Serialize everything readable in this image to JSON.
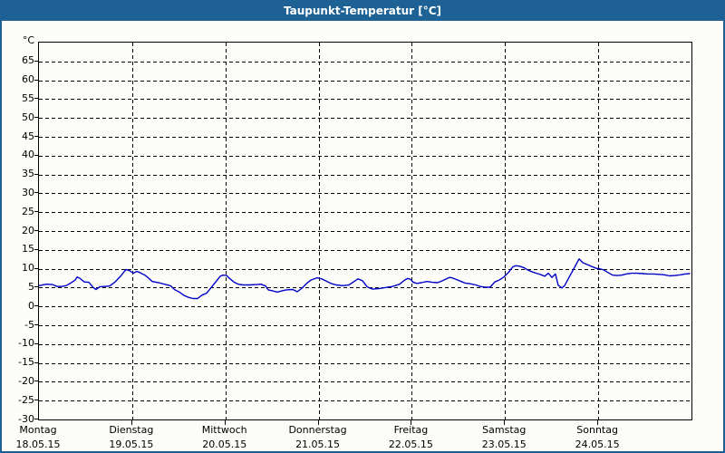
{
  "window": {
    "title": "Taupunkt-Temperatur [°C]"
  },
  "colors": {
    "titlebar_background": "#1e6295",
    "titlebar_text": "#ffffff",
    "window_border": "#1e6295",
    "background": "#fcfdf8",
    "grid": "#000000",
    "axis_frame": "#000000",
    "line": "#0000c8",
    "label_text": "#000000"
  },
  "chart_data": {
    "type": "line",
    "title": "Taupunkt-Temperatur [°C]",
    "unit_label": "°C",
    "grid": "dashed",
    "legend": "none",
    "y_axis": {
      "min": -30,
      "max": 70,
      "tick_step": 5,
      "labeled_tick_min": -30,
      "labeled_tick_max": 65
    },
    "x_axis": {
      "span_days": 7,
      "days": [
        {
          "name": "Montag",
          "date": "18.05.15"
        },
        {
          "name": "Dienstag",
          "date": "19.05.15"
        },
        {
          "name": "Mittwoch",
          "date": "20.05.15"
        },
        {
          "name": "Donnerstag",
          "date": "21.05.15"
        },
        {
          "name": "Freitag",
          "date": "22.05.15"
        },
        {
          "name": "Samstag",
          "date": "23.05.15"
        },
        {
          "name": "Sonntag",
          "date": "24.05.15"
        }
      ]
    },
    "series": [
      {
        "name": "Taupunkt",
        "color": "#0000c8",
        "points": [
          [
            0.0,
            5.5
          ],
          [
            0.078,
            5.9
          ],
          [
            0.146,
            5.8
          ],
          [
            0.194,
            5.3
          ],
          [
            0.243,
            5.3
          ],
          [
            0.292,
            5.5
          ],
          [
            0.34,
            6.2
          ],
          [
            0.389,
            7.0
          ],
          [
            0.408,
            7.8
          ],
          [
            0.437,
            7.5
          ],
          [
            0.486,
            6.5
          ],
          [
            0.535,
            6.4
          ],
          [
            0.583,
            5.0
          ],
          [
            0.612,
            4.5
          ],
          [
            0.651,
            5.2
          ],
          [
            0.7,
            5.3
          ],
          [
            0.758,
            5.4
          ],
          [
            0.817,
            6.5
          ],
          [
            0.875,
            8.0
          ],
          [
            0.933,
            9.8
          ],
          [
            0.972,
            9.5
          ],
          [
            1.011,
            8.8
          ],
          [
            1.05,
            9.3
          ],
          [
            1.089,
            8.9
          ],
          [
            1.137,
            8.3
          ],
          [
            1.176,
            7.5
          ],
          [
            1.215,
            6.6
          ],
          [
            1.283,
            6.3
          ],
          [
            1.361,
            5.8
          ],
          [
            1.41,
            5.5
          ],
          [
            1.458,
            4.4
          ],
          [
            1.507,
            3.8
          ],
          [
            1.556,
            2.9
          ],
          [
            1.604,
            2.4
          ],
          [
            1.653,
            2.1
          ],
          [
            1.701,
            2.1
          ],
          [
            1.75,
            3.0
          ],
          [
            1.799,
            3.5
          ],
          [
            1.847,
            5.0
          ],
          [
            1.896,
            6.5
          ],
          [
            1.944,
            8.0
          ],
          [
            1.974,
            8.3
          ],
          [
            2.013,
            8.2
          ],
          [
            2.042,
            7.5
          ],
          [
            2.09,
            6.5
          ],
          [
            2.139,
            5.9
          ],
          [
            2.188,
            5.7
          ],
          [
            2.256,
            5.7
          ],
          [
            2.333,
            5.8
          ],
          [
            2.382,
            5.9
          ],
          [
            2.431,
            5.4
          ],
          [
            2.46,
            4.4
          ],
          [
            2.508,
            4.1
          ],
          [
            2.557,
            3.8
          ],
          [
            2.606,
            4.1
          ],
          [
            2.654,
            4.4
          ],
          [
            2.722,
            4.5
          ],
          [
            2.771,
            3.9
          ],
          [
            2.819,
            4.8
          ],
          [
            2.868,
            6.0
          ],
          [
            2.917,
            7.0
          ],
          [
            2.985,
            7.6
          ],
          [
            3.033,
            7.3
          ],
          [
            3.082,
            6.7
          ],
          [
            3.131,
            6.1
          ],
          [
            3.189,
            5.7
          ],
          [
            3.257,
            5.5
          ],
          [
            3.325,
            5.7
          ],
          [
            3.374,
            6.5
          ],
          [
            3.422,
            7.3
          ],
          [
            3.471,
            6.8
          ],
          [
            3.52,
            5.2
          ],
          [
            3.578,
            4.6
          ],
          [
            3.646,
            4.7
          ],
          [
            3.714,
            5.0
          ],
          [
            3.792,
            5.3
          ],
          [
            3.869,
            5.9
          ],
          [
            3.918,
            6.9
          ],
          [
            3.957,
            7.4
          ],
          [
            3.986,
            7.2
          ],
          [
            4.015,
            6.4
          ],
          [
            4.054,
            6.1
          ],
          [
            4.103,
            6.3
          ],
          [
            4.161,
            6.6
          ],
          [
            4.219,
            6.4
          ],
          [
            4.278,
            6.3
          ],
          [
            4.336,
            6.9
          ],
          [
            4.394,
            7.6
          ],
          [
            4.414,
            7.7
          ],
          [
            4.452,
            7.4
          ],
          [
            4.511,
            6.8
          ],
          [
            4.569,
            6.2
          ],
          [
            4.627,
            6.0
          ],
          [
            4.686,
            5.7
          ],
          [
            4.734,
            5.3
          ],
          [
            4.783,
            5.1
          ],
          [
            4.841,
            5.1
          ],
          [
            4.89,
            6.5
          ],
          [
            4.938,
            7.0
          ],
          [
            4.987,
            7.8
          ],
          [
            5.036,
            9.0
          ],
          [
            5.084,
            10.5
          ],
          [
            5.113,
            10.8
          ],
          [
            5.152,
            10.7
          ],
          [
            5.201,
            10.3
          ],
          [
            5.25,
            9.6
          ],
          [
            5.298,
            9.1
          ],
          [
            5.347,
            8.7
          ],
          [
            5.376,
            8.5
          ],
          [
            5.425,
            8.0
          ],
          [
            5.464,
            8.8
          ],
          [
            5.503,
            7.7
          ],
          [
            5.541,
            8.6
          ],
          [
            5.571,
            5.6
          ],
          [
            5.59,
            5.3
          ],
          [
            5.61,
            4.9
          ],
          [
            5.639,
            5.5
          ],
          [
            5.687,
            7.7
          ],
          [
            5.726,
            9.5
          ],
          [
            5.755,
            10.8
          ],
          [
            5.794,
            12.6
          ],
          [
            5.833,
            11.6
          ],
          [
            5.882,
            11.1
          ],
          [
            5.93,
            10.6
          ],
          [
            5.979,
            10.1
          ],
          [
            6.008,
            10.0
          ],
          [
            6.057,
            9.7
          ],
          [
            6.105,
            9.0
          ],
          [
            6.154,
            8.3
          ],
          [
            6.203,
            8.2
          ],
          [
            6.251,
            8.3
          ],
          [
            6.3,
            8.6
          ],
          [
            6.358,
            8.8
          ],
          [
            6.417,
            8.8
          ],
          [
            6.475,
            8.7
          ],
          [
            6.533,
            8.6
          ],
          [
            6.592,
            8.6
          ],
          [
            6.65,
            8.5
          ],
          [
            6.708,
            8.4
          ],
          [
            6.767,
            8.1
          ],
          [
            6.825,
            8.2
          ],
          [
            6.883,
            8.4
          ],
          [
            6.932,
            8.6
          ],
          [
            6.98,
            8.7
          ]
        ]
      }
    ]
  }
}
